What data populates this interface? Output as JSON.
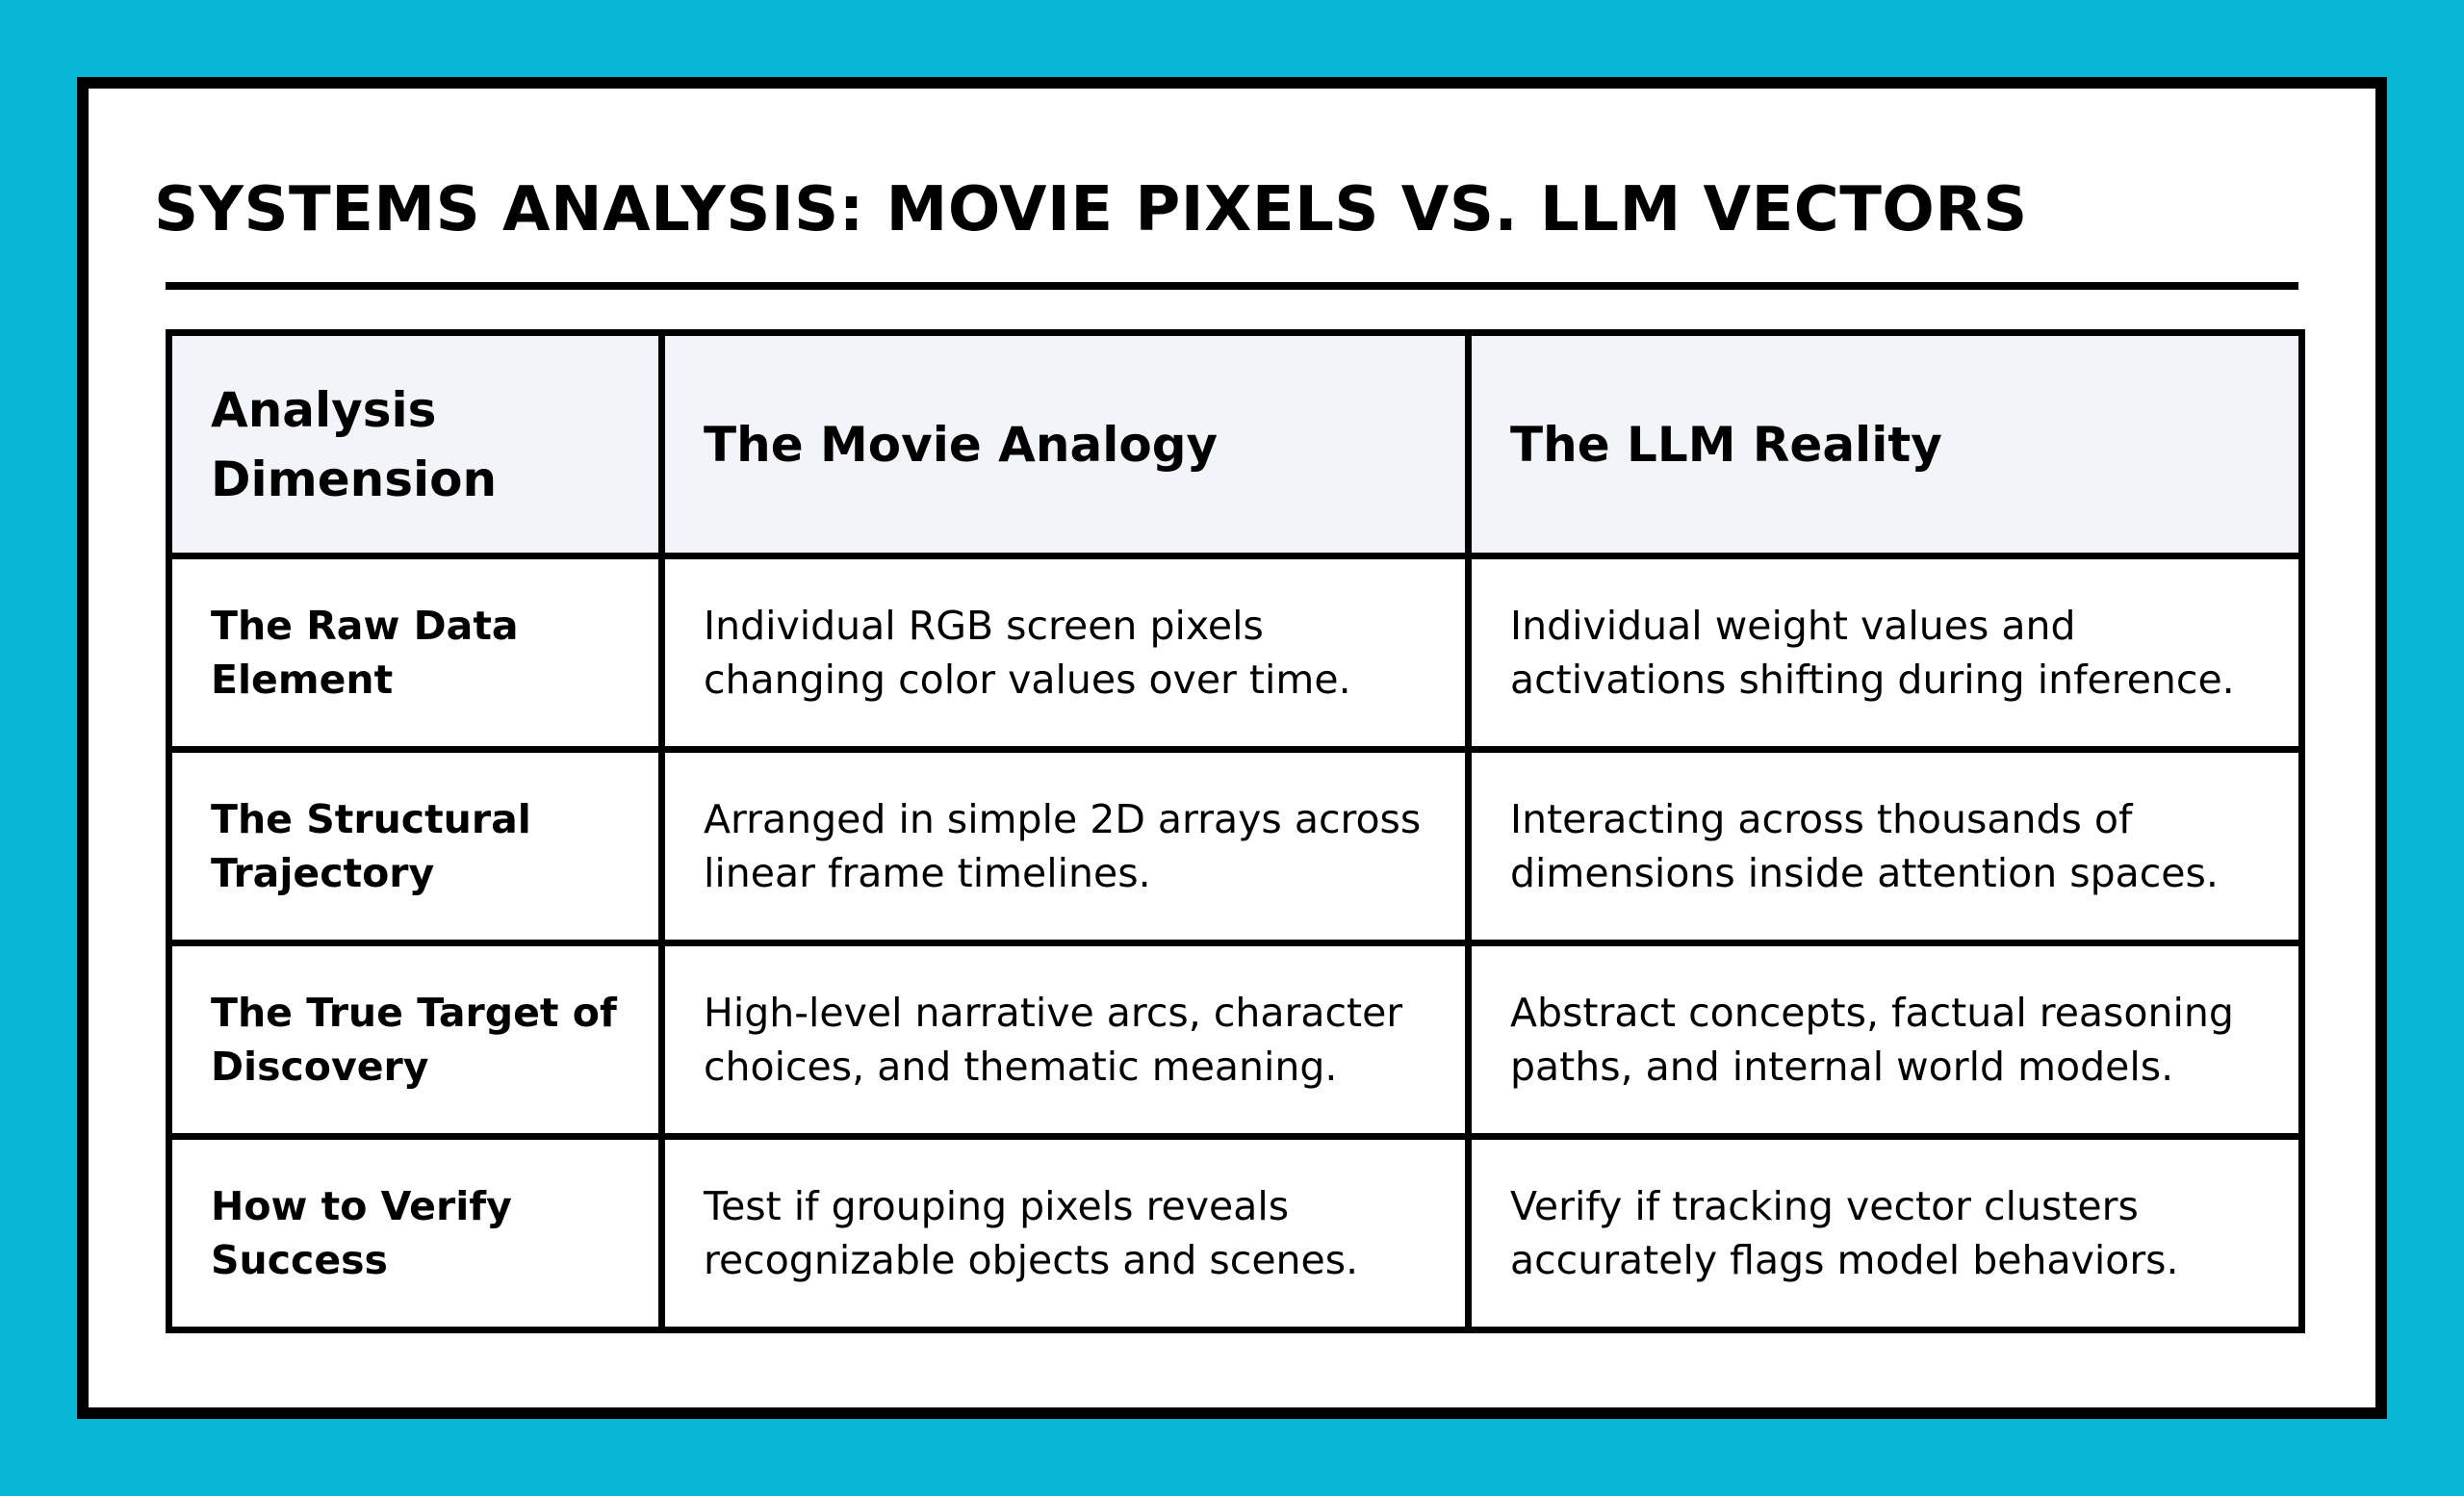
{
  "title": "SYSTEMS ANALYSIS: MOVIE PIXELS VS. LLM VECTORS",
  "table": {
    "headers": [
      "Analysis Dimension",
      "The Movie Analogy",
      "The LLM Reality"
    ],
    "rows": [
      {
        "dimension": "The Raw Data Element",
        "movie": "Individual RGB screen pixels changing color values over time.",
        "llm": "Individual weight values and activations shifting during inference."
      },
      {
        "dimension": "The Structural Trajectory",
        "movie": "Arranged in simple 2D arrays across linear frame timelines.",
        "llm": "Interacting across thousands of dimensions inside attention spaces."
      },
      {
        "dimension": "The True Target of Discovery",
        "movie": "High-level narrative arcs, character choices, and thematic meaning.",
        "llm": "Abstract concepts, factual reasoning paths, and internal world models."
      },
      {
        "dimension": "How to Verify Success",
        "movie": "Test if grouping pixels reveals recognizable objects and scenes.",
        "llm": "Verify if tracking vector clusters accurately flags model behaviors."
      }
    ]
  },
  "colors": {
    "background": "#08b6d5",
    "card": "#ffffff",
    "header_fill": "#f1f4f8",
    "border": "#000000"
  }
}
